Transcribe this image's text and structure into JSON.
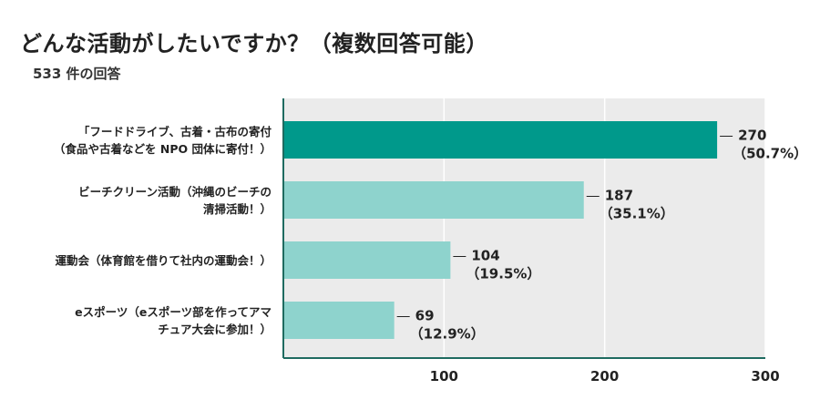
{
  "title": "どんな活動がしたいですか？（複数回答可能）",
  "subtitle": "533 件の回答",
  "colors": {
    "highlight": "#00998b",
    "bar": "#8ed3cd",
    "plot_bg": "#ebebeb",
    "axis": "#1f6b60",
    "grid": "#ffffff"
  },
  "chart_data": {
    "type": "bar",
    "orientation": "horizontal",
    "xlim": [
      0,
      300
    ],
    "ticks": [
      100,
      200,
      300
    ],
    "grid": true,
    "categories": [
      [
        "「フードドライブ、古着・古布の寄付",
        "（食品や古着などを NPO 団体に寄付！）"
      ],
      [
        "ビーチクリーン活動（沖縄のビーチの",
        "清掃活動！）"
      ],
      [
        "運動会（体育館を借りて社内の運動会！）"
      ],
      [
        "eスポーツ（eスポーツ部を作ってアマ",
        "チュア大会に参加！）"
      ]
    ],
    "values": [
      270,
      187,
      104,
      69
    ],
    "labels": [
      "270",
      "187",
      "104",
      "69"
    ],
    "percent_labels": [
      "（50.7%）",
      "（35.1%）",
      "（19.5%）",
      "（12.9%）"
    ]
  }
}
